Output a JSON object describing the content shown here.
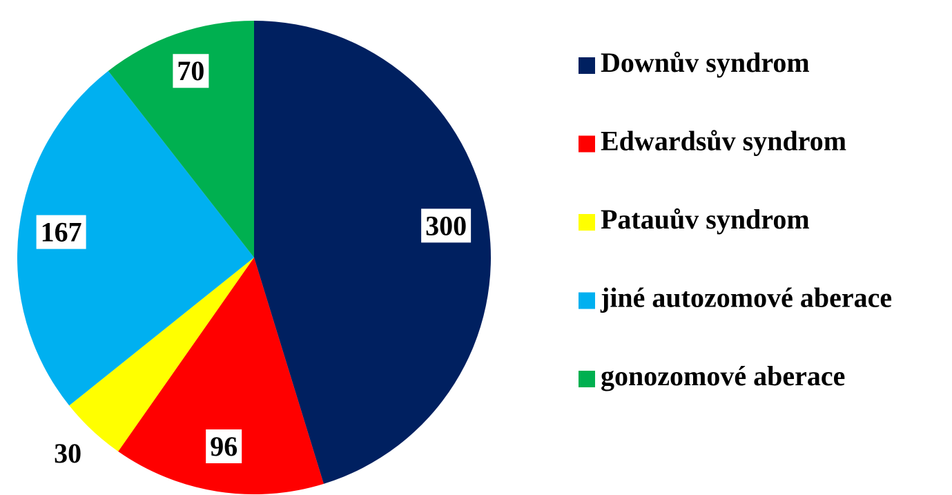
{
  "chart_data": {
    "type": "pie",
    "categories": [
      "Downův syndrom",
      "Edwardsův syndrom",
      "Patauův syndrom",
      "jiné autozomové aberace",
      "gonozomové aberace"
    ],
    "values": [
      300,
      96,
      30,
      167,
      70
    ],
    "colors": [
      "#002060",
      "#ff0000",
      "#ffff00",
      "#00b0f0",
      "#00b050"
    ],
    "legend": "right"
  }
}
